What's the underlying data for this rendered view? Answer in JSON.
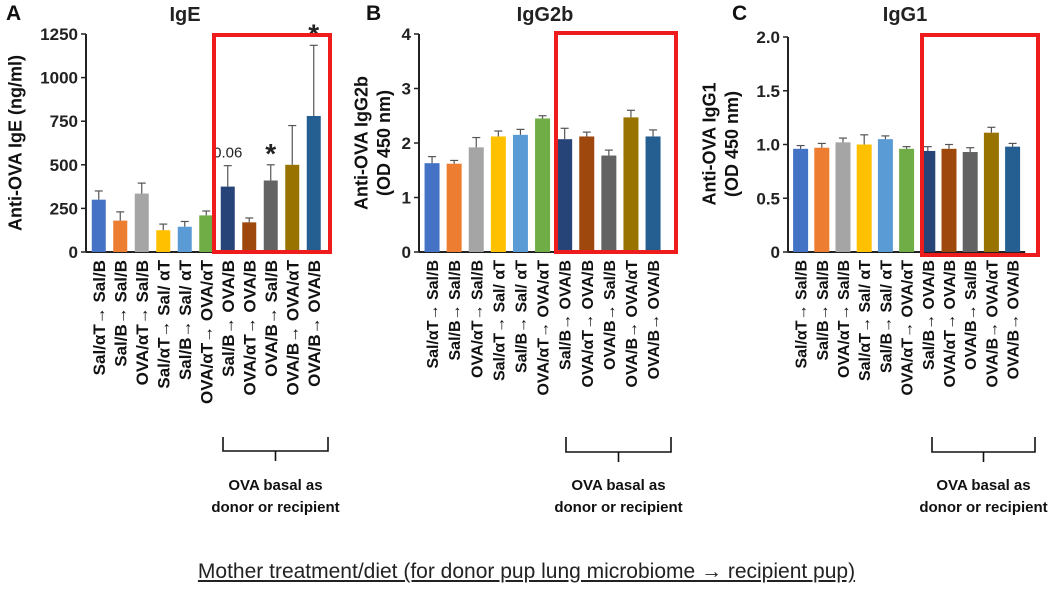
{
  "figure": {
    "footer": "Mother treatment/diet  (for donor pup lung microbiome → recipient pup)"
  },
  "categories": [
    "Sal/αT→ Sal/B",
    "Sal/B→ Sal/B",
    "OVA/αT→ Sal/B",
    "Sal/αT→ Sal/ αT",
    "Sal/B→ Sal/ αT",
    "OVA/αT→ OVA/αT",
    "Sal/B→ OVA/B",
    "OVA/αT→ OVA/B",
    "OVA/B→ Sal/B",
    "OVA/B→ OVA/αT",
    "OVA/B→ OVA/B"
  ],
  "colors": [
    "#4472c4",
    "#ed7d31",
    "#a5a5a5",
    "#ffc000",
    "#5b9bd5",
    "#70ad47",
    "#264478",
    "#9e480e",
    "#636363",
    "#997300",
    "#255e91"
  ],
  "highlight_color": "#ee1c1c",
  "chart_data": [
    {
      "panel": "A",
      "type": "bar",
      "title": "IgE",
      "ylabel": [
        "Anti-OVA IgE (ng/ml)"
      ],
      "ylim": [
        0,
        1250
      ],
      "yticks": [
        0,
        250,
        500,
        750,
        1000,
        1250
      ],
      "ytick_labels": [
        "0",
        "250",
        "500",
        "750",
        "1000",
        "1250"
      ],
      "values": [
        300,
        180,
        335,
        125,
        145,
        210,
        375,
        170,
        410,
        500,
        780
      ],
      "errors": [
        50,
        50,
        60,
        35,
        30,
        25,
        120,
        25,
        90,
        225,
        405
      ],
      "annotations": [
        {
          "index": 6,
          "text": "0.06"
        },
        {
          "index": 8,
          "text": "*"
        },
        {
          "index": 10,
          "text": "*"
        }
      ],
      "bracket_label": [
        "OVA basal as",
        "donor or recipient"
      ]
    },
    {
      "panel": "B",
      "type": "bar",
      "title": "IgG2b",
      "ylabel": [
        "Anti-OVA IgG2b",
        "(OD 450 nm)"
      ],
      "ylim": [
        0,
        4
      ],
      "yticks": [
        0,
        1,
        2,
        3,
        4
      ],
      "ytick_labels": [
        "0",
        "1",
        "2",
        "3",
        "4"
      ],
      "values": [
        1.63,
        1.62,
        1.92,
        2.12,
        2.15,
        2.45,
        2.07,
        2.12,
        1.77,
        2.47,
        2.12
      ],
      "errors": [
        0.12,
        0.06,
        0.18,
        0.1,
        0.1,
        0.05,
        0.2,
        0.08,
        0.1,
        0.13,
        0.12
      ],
      "annotations": [],
      "bracket_label": [
        "OVA basal as",
        "donor or recipient"
      ]
    },
    {
      "panel": "C",
      "type": "bar",
      "title": "IgG1",
      "ylabel": [
        "Anti-OVA IgG1",
        "(OD 450 nm)"
      ],
      "ylim": [
        0,
        2
      ],
      "yticks": [
        0,
        0.5,
        1,
        1.5,
        2
      ],
      "ytick_labels": [
        "0",
        "0.5",
        "1.0",
        "1.5",
        "2.0"
      ],
      "values": [
        0.96,
        0.97,
        1.02,
        1.0,
        1.05,
        0.96,
        0.94,
        0.96,
        0.93,
        1.11,
        0.98
      ],
      "errors": [
        0.03,
        0.04,
        0.04,
        0.09,
        0.03,
        0.02,
        0.04,
        0.04,
        0.04,
        0.05,
        0.03
      ],
      "annotations": [],
      "bracket_label": [
        "OVA basal as",
        "donor or recipient"
      ]
    }
  ]
}
